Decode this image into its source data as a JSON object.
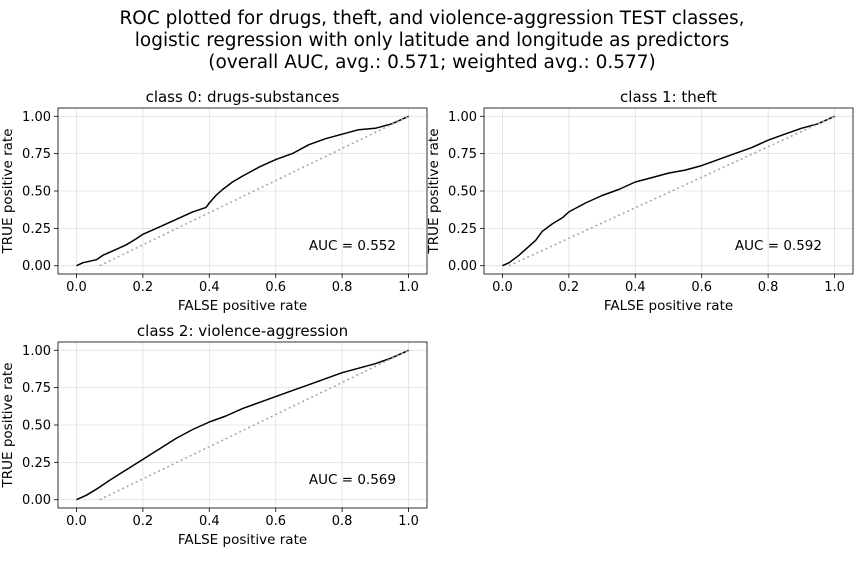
{
  "figure": {
    "title_lines": [
      "ROC plotted for drugs, theft, and violence-aggression TEST classes,",
      "logistic regression with only latitude and longitude as predictors",
      "(overall AUC, avg.: 0.571; weighted avg.: 0.577)"
    ]
  },
  "colors": {
    "roc_line": "#000000",
    "diagonal": "#a8a8a8",
    "grid": "#e0e0e0",
    "frame": "#000000"
  },
  "chart_data": [
    {
      "type": "line",
      "title": "class 0: drugs-substances",
      "xlabel": "FALSE positive rate",
      "ylabel": "TRUE positive rate",
      "xlim": [
        0,
        1
      ],
      "ylim": [
        0,
        1
      ],
      "xticks": [
        "0.0",
        "0.2",
        "0.4",
        "0.6",
        "0.8",
        "1.0"
      ],
      "yticks": [
        "0.00",
        "0.25",
        "0.50",
        "0.75",
        "1.00"
      ],
      "grid": true,
      "annotation": "AUC = 0.552",
      "series": [
        {
          "role": "roc",
          "x": [
            0,
            0.02,
            0.06,
            0.08,
            0.1,
            0.15,
            0.18,
            0.2,
            0.25,
            0.3,
            0.35,
            0.39,
            0.4,
            0.42,
            0.44,
            0.47,
            0.5,
            0.55,
            0.6,
            0.65,
            0.7,
            0.75,
            0.8,
            0.85,
            0.9,
            0.95,
            0.98,
            1.0
          ],
          "y": [
            0,
            0.02,
            0.04,
            0.07,
            0.09,
            0.14,
            0.18,
            0.21,
            0.26,
            0.31,
            0.36,
            0.39,
            0.42,
            0.47,
            0.51,
            0.56,
            0.6,
            0.66,
            0.71,
            0.75,
            0.81,
            0.85,
            0.88,
            0.91,
            0.92,
            0.95,
            0.98,
            1.0
          ]
        },
        {
          "role": "chance",
          "x": [
            0.07,
            1.0
          ],
          "y": [
            0,
            1.0
          ]
        }
      ]
    },
    {
      "type": "line",
      "title": "class 1: theft",
      "xlabel": "FALSE positive rate",
      "ylabel": "TRUE positive rate",
      "xlim": [
        0,
        1
      ],
      "ylim": [
        0,
        1
      ],
      "xticks": [
        "0.0",
        "0.2",
        "0.4",
        "0.6",
        "0.8",
        "1.0"
      ],
      "yticks": [
        "0.00",
        "0.25",
        "0.50",
        "0.75",
        "1.00"
      ],
      "grid": true,
      "annotation": "AUC = 0.592",
      "series": [
        {
          "role": "roc",
          "x": [
            0,
            0.02,
            0.05,
            0.08,
            0.1,
            0.12,
            0.15,
            0.18,
            0.2,
            0.25,
            0.3,
            0.35,
            0.38,
            0.4,
            0.45,
            0.5,
            0.55,
            0.6,
            0.65,
            0.7,
            0.75,
            0.8,
            0.85,
            0.9,
            0.95,
            1.0
          ],
          "y": [
            0,
            0.02,
            0.07,
            0.13,
            0.17,
            0.23,
            0.28,
            0.32,
            0.36,
            0.42,
            0.47,
            0.51,
            0.54,
            0.56,
            0.59,
            0.62,
            0.64,
            0.67,
            0.71,
            0.75,
            0.79,
            0.84,
            0.88,
            0.92,
            0.95,
            1.0
          ]
        },
        {
          "role": "chance",
          "x": [
            0.02,
            1.0
          ],
          "y": [
            0,
            1.0
          ]
        }
      ]
    },
    {
      "type": "line",
      "title": "class 2: violence-aggression",
      "xlabel": "FALSE positive rate",
      "ylabel": "TRUE positive rate",
      "xlim": [
        0,
        1
      ],
      "ylim": [
        0,
        1
      ],
      "xticks": [
        "0.0",
        "0.2",
        "0.4",
        "0.6",
        "0.8",
        "1.0"
      ],
      "yticks": [
        "0.00",
        "0.25",
        "0.50",
        "0.75",
        "1.00"
      ],
      "grid": true,
      "annotation": "AUC = 0.569",
      "series": [
        {
          "role": "roc",
          "x": [
            0,
            0.03,
            0.06,
            0.1,
            0.15,
            0.2,
            0.25,
            0.3,
            0.35,
            0.4,
            0.45,
            0.5,
            0.55,
            0.6,
            0.65,
            0.7,
            0.75,
            0.8,
            0.85,
            0.9,
            0.95,
            1.0
          ],
          "y": [
            0,
            0.03,
            0.07,
            0.13,
            0.2,
            0.27,
            0.34,
            0.41,
            0.47,
            0.52,
            0.56,
            0.61,
            0.65,
            0.69,
            0.73,
            0.77,
            0.81,
            0.85,
            0.88,
            0.91,
            0.95,
            1.0
          ]
        },
        {
          "role": "chance",
          "x": [
            0.07,
            1.0
          ],
          "y": [
            0,
            1.0
          ]
        }
      ]
    }
  ]
}
